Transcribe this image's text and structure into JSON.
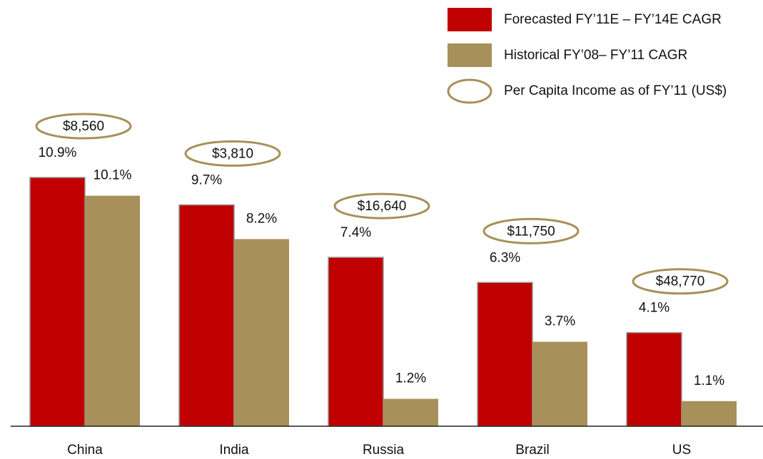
{
  "chart_data": {
    "type": "bar",
    "categories": [
      "China",
      "India",
      "Russia",
      "Brazil",
      "US"
    ],
    "series": [
      {
        "name": "Forecasted FY’11E – FY’14E CAGR",
        "color": "#c00000",
        "values": [
          10.9,
          9.7,
          7.4,
          6.3,
          4.1
        ],
        "value_labels": [
          "10.9%",
          "9.7%",
          "7.4%",
          "6.3%",
          "4.1%"
        ]
      },
      {
        "name": "Historical FY’08– FY’11 CAGR",
        "color": "#a8905a",
        "values": [
          10.1,
          8.2,
          1.2,
          3.7,
          1.1
        ],
        "value_labels": [
          "10.1%",
          "8.2%",
          "1.2%",
          "3.7%",
          "1.1%"
        ]
      },
      {
        "name": "Per Capita Income as of FY’11 (US$)",
        "color": "#a8905a",
        "marker": "ellipse",
        "values": [
          8560,
          3810,
          16640,
          11750,
          48770
        ],
        "value_labels": [
          "$8,560",
          "$3,810",
          "$16,640",
          "$11,750",
          "$48,770"
        ]
      }
    ]
  }
}
